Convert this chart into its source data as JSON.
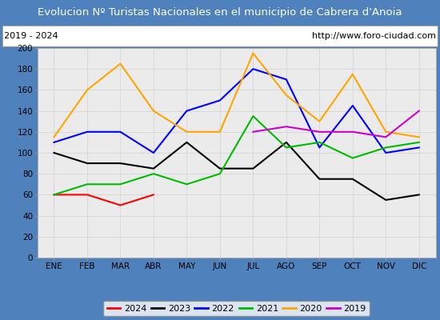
{
  "title": "Evolucion Nº Turistas Nacionales en el municipio de Cabrera d'Anoia",
  "subtitle_left": "2019 - 2024",
  "subtitle_right": "http://www.foro-ciudad.com",
  "months": [
    "ENE",
    "FEB",
    "MAR",
    "ABR",
    "MAY",
    "JUN",
    "JUL",
    "AGO",
    "SEP",
    "OCT",
    "NOV",
    "DIC"
  ],
  "ylim": [
    0,
    200
  ],
  "yticks": [
    0,
    20,
    40,
    60,
    80,
    100,
    120,
    140,
    160,
    180,
    200
  ],
  "series": {
    "2024": {
      "color": "#ff0000",
      "values": [
        60,
        60,
        50,
        60,
        null,
        null,
        null,
        null,
        null,
        null,
        null,
        null
      ]
    },
    "2023": {
      "color": "#000000",
      "values": [
        100,
        90,
        90,
        85,
        110,
        85,
        85,
        110,
        75,
        75,
        55,
        60
      ]
    },
    "2022": {
      "color": "#0000ff",
      "values": [
        110,
        120,
        120,
        100,
        140,
        150,
        180,
        170,
        105,
        145,
        100,
        105
      ]
    },
    "2021": {
      "color": "#00bb00",
      "values": [
        60,
        70,
        70,
        80,
        70,
        80,
        135,
        105,
        110,
        95,
        105,
        110
      ]
    },
    "2020": {
      "color": "#ffa500",
      "values": [
        115,
        160,
        185,
        140,
        120,
        120,
        195,
        155,
        130,
        175,
        120,
        115
      ]
    },
    "2019": {
      "color": "#cc00cc",
      "values": [
        null,
        null,
        null,
        null,
        null,
        null,
        120,
        125,
        120,
        120,
        115,
        140
      ]
    }
  },
  "title_bg_color": "#4f81bd",
  "title_color": "#ffffff",
  "plot_bg_color": "#ebebeb",
  "outer_bg_color": "#4f81bd",
  "grid_color": "#d5d5d5",
  "legend_years": [
    "2024",
    "2023",
    "2022",
    "2021",
    "2020",
    "2019"
  ],
  "title_fontsize": 9.5,
  "tick_fontsize": 7.5,
  "legend_fontsize": 8.0
}
